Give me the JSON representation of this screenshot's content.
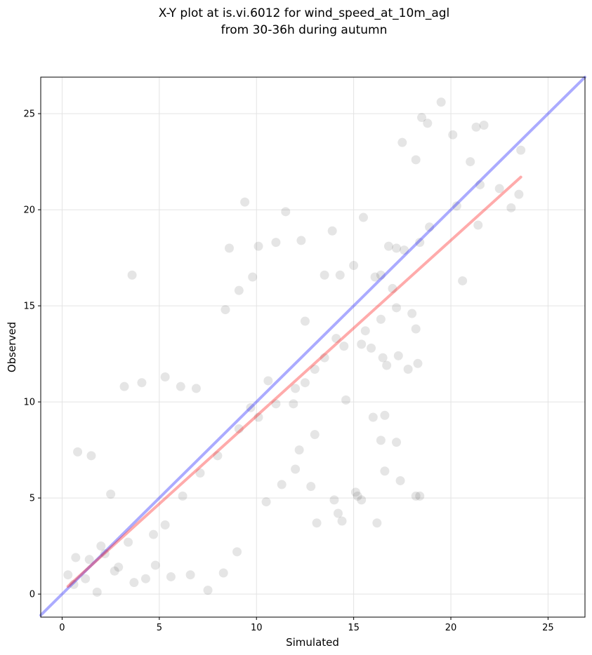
{
  "chart_data": {
    "type": "scatter",
    "title_line1": "X-Y plot at is.vi.6012 for wind_speed_at_10m_agl",
    "title_line2": "from 30-36h during autumn",
    "xlabel": "Simulated",
    "ylabel": "Observed",
    "xlim": [
      -1.1,
      26.9
    ],
    "ylim": [
      -1.2,
      26.9
    ],
    "x_ticks": [
      0,
      5,
      10,
      15,
      20,
      25
    ],
    "y_ticks": [
      0,
      5,
      10,
      15,
      20,
      25
    ],
    "x_tick_labels": [
      "0",
      "5",
      "10",
      "15",
      "20",
      "25"
    ],
    "y_tick_labels": [
      "0",
      "5",
      "10",
      "15",
      "20",
      "25"
    ],
    "grid": true,
    "colors": {
      "points": "#000000",
      "identity_line": "#0000ff",
      "fit_line": "#ff0000"
    },
    "reference_lines": [
      {
        "role": "identity",
        "x": [
          -1.1,
          26.9
        ],
        "y": [
          -1.1,
          26.9
        ]
      },
      {
        "role": "fit",
        "x": [
          0.3,
          23.6
        ],
        "y": [
          0.4,
          21.7
        ]
      }
    ],
    "series": [
      {
        "x": [
          23.6,
          21.7,
          21.3,
          19.5,
          18.5,
          18.8,
          20.1,
          21.0,
          18.2,
          17.5,
          23.5,
          23.1,
          20.3,
          18.9,
          21.5,
          22.5,
          21.4,
          20.6,
          17.6,
          18.4,
          14.3,
          16.4,
          13.9,
          15.5,
          16.8,
          17.2,
          9.4,
          11.0,
          10.1,
          8.6,
          9.1,
          3.6,
          8.4,
          9.8,
          11.5,
          15.0,
          12.3,
          16.1,
          13.5,
          17.0,
          18.0,
          18.2,
          15.4,
          16.5,
          17.8,
          12.5,
          14.1,
          13.5,
          15.9,
          16.7,
          17.3,
          18.3,
          14.6,
          12.0,
          10.6,
          11.9,
          9.7,
          13.0,
          16.0,
          16.6,
          16.4,
          17.2,
          18.4,
          16.6,
          15.4,
          15.2,
          14.4,
          14.0,
          12.8,
          12.2,
          5.3,
          6.1,
          6.9,
          4.1,
          3.2,
          2.5,
          1.5,
          0.8,
          0.3,
          0.6,
          1.4,
          2.0,
          2.7,
          3.4,
          4.7,
          5.3,
          6.2,
          7.1,
          8.0,
          9.1,
          10.1,
          11.0,
          12.5,
          13.0,
          14.5,
          15.6,
          16.4,
          17.2,
          17.4,
          18.2,
          10.5,
          11.3,
          12.0,
          9.0,
          8.3,
          7.5,
          6.6,
          5.6,
          4.8,
          4.3,
          3.7,
          2.9,
          2.2,
          1.8,
          1.2,
          0.7,
          13.1,
          14.2,
          15.1,
          16.2
        ],
        "y": [
          23.1,
          24.4,
          24.3,
          25.6,
          24.8,
          24.5,
          23.9,
          22.5,
          22.6,
          23.5,
          20.8,
          20.1,
          20.2,
          19.1,
          21.3,
          21.1,
          19.2,
          16.3,
          17.9,
          18.3,
          16.6,
          16.6,
          18.9,
          19.6,
          18.1,
          18.0,
          20.4,
          18.3,
          18.1,
          18.0,
          15.8,
          16.6,
          14.8,
          16.5,
          19.9,
          17.1,
          18.4,
          16.5,
          16.6,
          15.9,
          14.6,
          13.8,
          13.0,
          12.3,
          11.7,
          14.2,
          13.3,
          12.3,
          12.8,
          11.9,
          12.4,
          12.0,
          10.1,
          10.7,
          11.1,
          9.9,
          9.7,
          8.3,
          9.2,
          9.3,
          8.0,
          7.9,
          5.1,
          6.4,
          4.9,
          5.1,
          3.8,
          4.9,
          5.6,
          7.5,
          11.3,
          10.8,
          10.7,
          11.0,
          10.8,
          5.2,
          7.2,
          7.4,
          1.0,
          0.5,
          1.8,
          2.5,
          1.2,
          2.7,
          3.1,
          3.6,
          5.1,
          6.3,
          7.2,
          8.6,
          9.2,
          9.9,
          11.0,
          11.7,
          12.9,
          13.7,
          14.3,
          14.9,
          5.9,
          5.1,
          4.8,
          5.7,
          6.5,
          2.2,
          1.1,
          0.2,
          1.0,
          0.9,
          1.5,
          0.8,
          0.6,
          1.4,
          2.1,
          0.1,
          0.8,
          1.9,
          3.7,
          4.2,
          5.3,
          3.7
        ]
      }
    ]
  }
}
